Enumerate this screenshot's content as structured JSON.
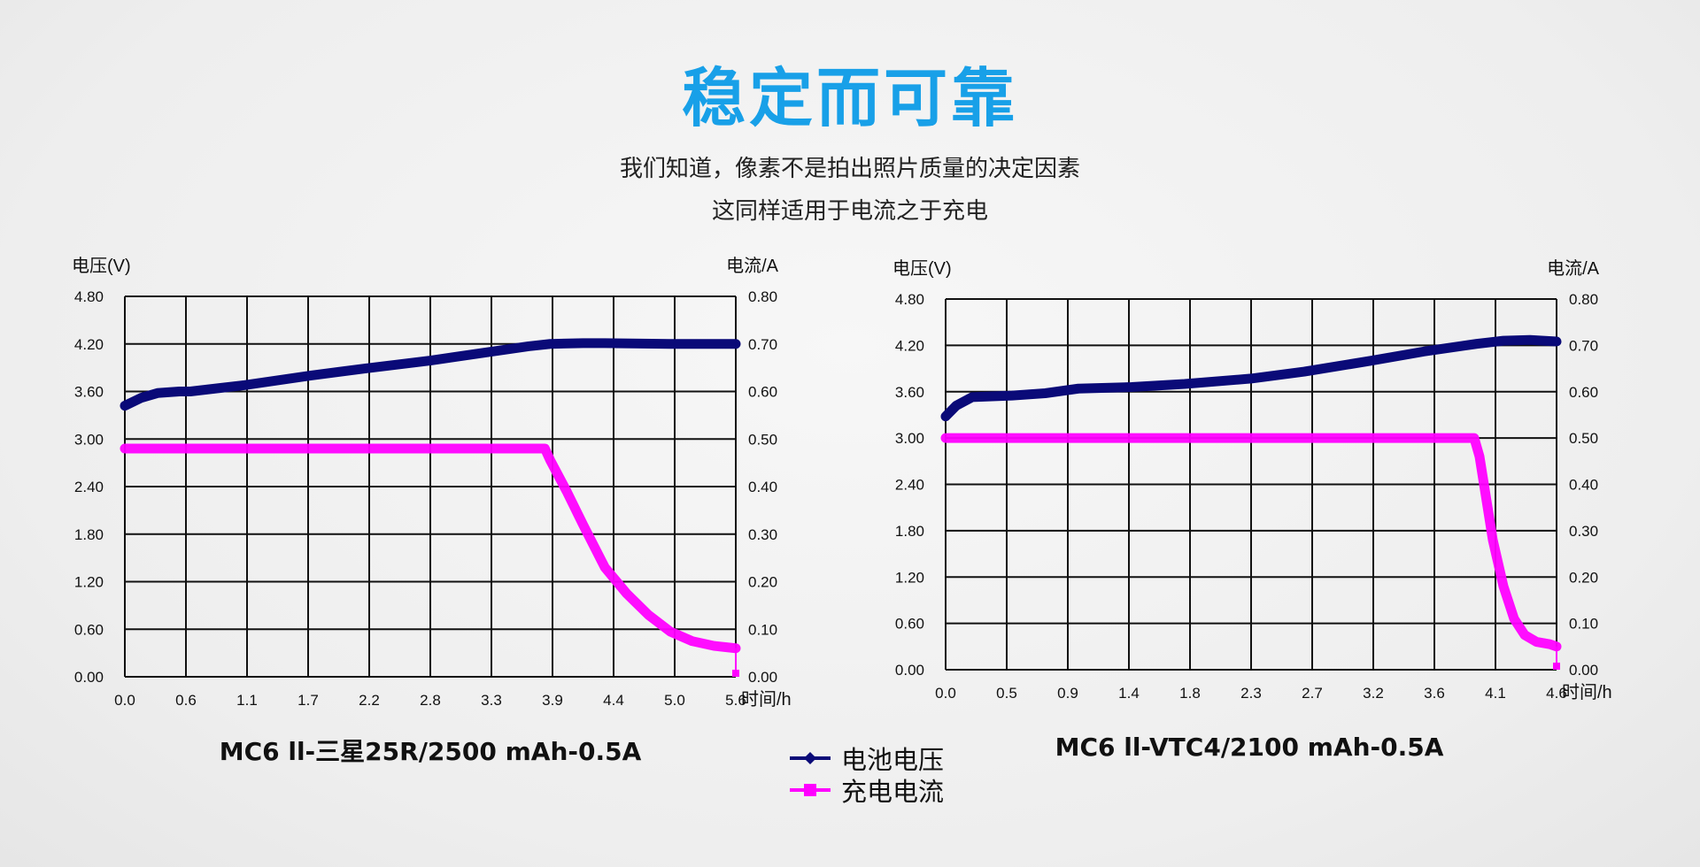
{
  "header": {
    "title": "稳定而可靠",
    "title_color": "#18a0e8",
    "subtitle_lines": [
      "我们知道，像素不是拍出照片质量的决定因素",
      "这同样适用于电流之于充电"
    ]
  },
  "legend": {
    "items": [
      {
        "label": "电池电压",
        "color": "#0a0a78",
        "marker": "diamond"
      },
      {
        "label": "充电电流",
        "color": "#ff00ff",
        "marker": "square"
      }
    ]
  },
  "chart_data": [
    {
      "type": "line",
      "title": "MC6 ll-三星25R/2500 mAh-0.5A",
      "ylabel_left": "电压(V)",
      "ylabel_right": "电流/A",
      "xlabel": "时间/h",
      "xlim": [
        0,
        5.6
      ],
      "ylim_left": [
        0,
        4.8
      ],
      "ylim_right": [
        0,
        0.8
      ],
      "grid": true,
      "x_ticks": [
        "0.0",
        "0.6",
        "1.1",
        "1.7",
        "2.2",
        "2.8",
        "3.3",
        "3.9",
        "4.4",
        "5.0",
        "5.6"
      ],
      "y_ticks_left": [
        "0.00",
        "0.60",
        "1.20",
        "1.80",
        "2.40",
        "3.00",
        "3.60",
        "4.20",
        "4.80"
      ],
      "y_ticks_right": [
        "0.00",
        "0.10",
        "0.20",
        "0.30",
        "0.40",
        "0.50",
        "0.60",
        "0.70",
        "0.80"
      ],
      "series": [
        {
          "name": "电池电压",
          "axis": "left",
          "x": [
            0,
            0.15,
            0.3,
            0.5,
            0.6,
            1.1,
            1.7,
            2.2,
            2.8,
            3.3,
            3.7,
            3.9,
            4.2,
            4.4,
            5.0,
            5.6
          ],
          "y": [
            3.42,
            3.52,
            3.58,
            3.6,
            3.6,
            3.68,
            3.8,
            3.89,
            3.99,
            4.09,
            4.17,
            4.2,
            4.21,
            4.21,
            4.2,
            4.2
          ]
        },
        {
          "name": "充电电流",
          "axis": "right",
          "x": [
            0,
            3.85,
            3.9,
            4.05,
            4.2,
            4.4,
            4.6,
            4.8,
            5.0,
            5.2,
            5.4,
            5.6,
            5.6
          ],
          "y": [
            0.48,
            0.48,
            0.455,
            0.39,
            0.32,
            0.23,
            0.175,
            0.13,
            0.095,
            0.075,
            0.065,
            0.06,
            0.0
          ]
        }
      ]
    },
    {
      "type": "line",
      "title": "MC6 ll-VTC4/2100 mAh-0.5A",
      "ylabel_left": "电压(V)",
      "ylabel_right": "电流/A",
      "xlabel": "时间/h",
      "xlim": [
        0,
        4.6
      ],
      "ylim_left": [
        0,
        4.8
      ],
      "ylim_right": [
        0,
        0.8
      ],
      "grid": true,
      "x_ticks": [
        "0.0",
        "0.5",
        "0.9",
        "1.4",
        "1.8",
        "2.3",
        "2.7",
        "3.2",
        "3.6",
        "4.1",
        "4.6"
      ],
      "y_ticks_left": [
        "0.00",
        "0.60",
        "1.20",
        "1.80",
        "2.40",
        "3.00",
        "3.60",
        "4.20",
        "4.80"
      ],
      "y_ticks_right": [
        "0.00",
        "0.10",
        "0.20",
        "0.30",
        "0.40",
        "0.50",
        "0.60",
        "0.70",
        "0.80"
      ],
      "series": [
        {
          "name": "电池电压",
          "axis": "left",
          "x": [
            0,
            0.08,
            0.2,
            0.5,
            0.75,
            1.0,
            1.4,
            1.8,
            2.3,
            2.7,
            3.2,
            3.6,
            4.0,
            4.2,
            4.4,
            4.6
          ],
          "y": [
            3.28,
            3.42,
            3.53,
            3.55,
            3.58,
            3.64,
            3.66,
            3.7,
            3.77,
            3.86,
            4.0,
            4.12,
            4.22,
            4.26,
            4.27,
            4.25
          ]
        },
        {
          "name": "充电电流",
          "axis": "right",
          "x": [
            0,
            3.98,
            4.02,
            4.07,
            4.12,
            4.2,
            4.28,
            4.36,
            4.45,
            4.55,
            4.6,
            4.6
          ],
          "y": [
            0.5,
            0.5,
            0.46,
            0.37,
            0.28,
            0.18,
            0.11,
            0.075,
            0.06,
            0.055,
            0.05,
            0.0
          ]
        }
      ]
    }
  ]
}
